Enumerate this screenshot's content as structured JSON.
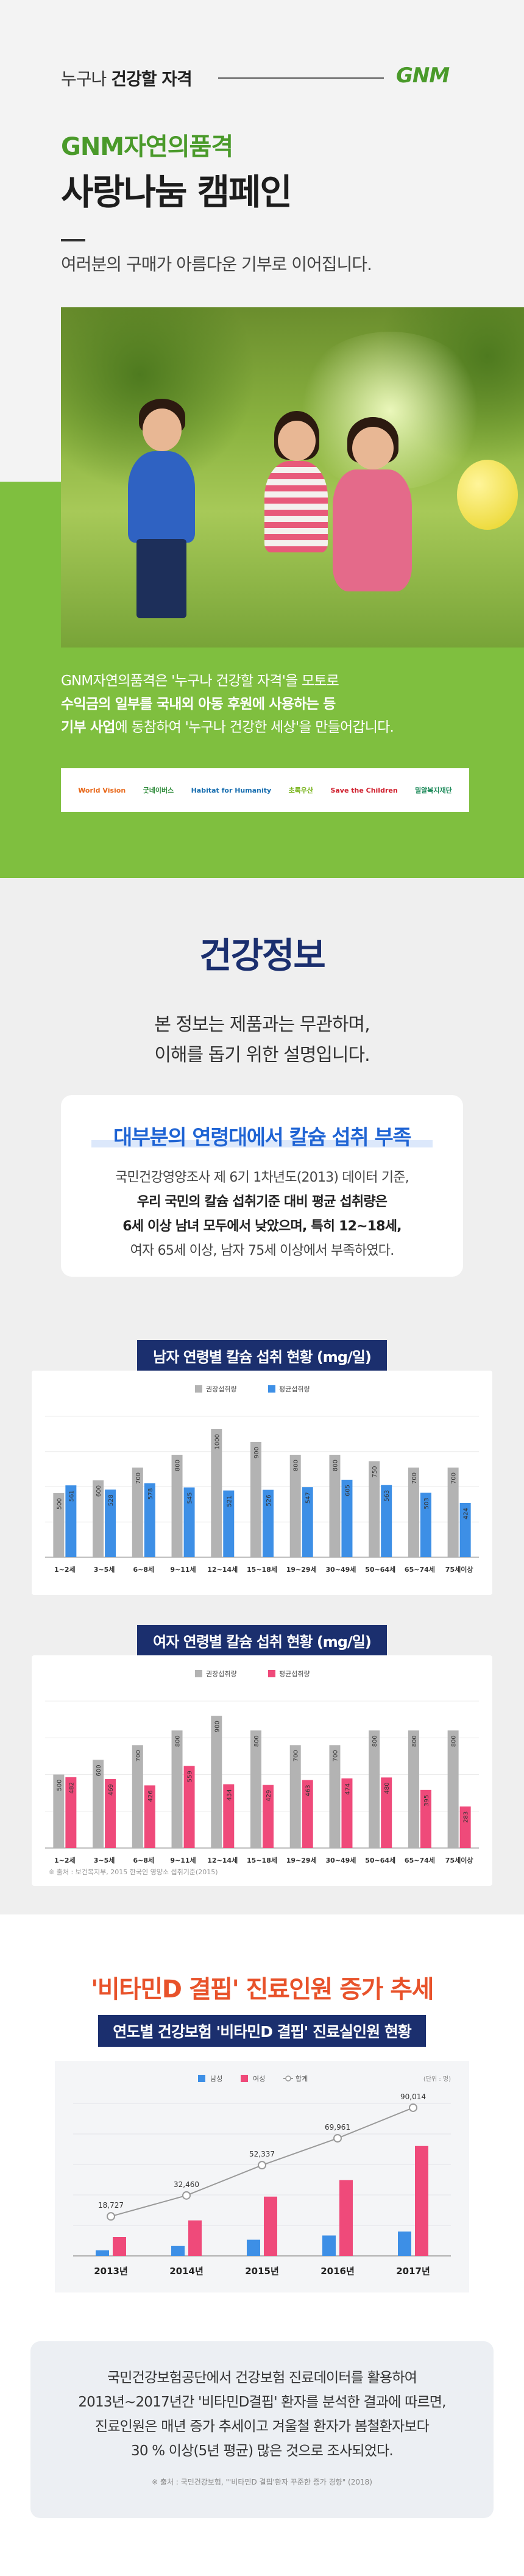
{
  "campaign": {
    "tagline_prefix": "누구나 ",
    "tagline_bold": "건강할 자격",
    "logo": "GNM",
    "brand_title": "GNM자연의품격",
    "title": "사랑나눔 캠페인",
    "subtitle": "여러분의 구매가 아름다운 기부로 이어집니다.",
    "desc_line1": "GNM자연의품격은 '누구나 건강할 자격'을 모토로",
    "desc_line2_bold": "수익금의 일부를 국내외 아동 후원에 사용하는 등",
    "desc_line3_bold": "기부 사업",
    "desc_line3_rest": "에 동참하여 '누구나 건강한 세상'을 만들어갑니다.",
    "partners": [
      {
        "label": "World Vision",
        "color": "#e8681a"
      },
      {
        "label": "굿네이버스",
        "color": "#2e8b3a"
      },
      {
        "label": "Habitat for Humanity",
        "color": "#1a6fb0"
      },
      {
        "label": "초록우산",
        "color": "#7ab41e"
      },
      {
        "label": "Save the Children",
        "color": "#d0202e"
      },
      {
        "label": "밀알복지재단",
        "color": "#1d8a5a"
      }
    ]
  },
  "health": {
    "title": "건강정보",
    "note_line1": "본 정보는 제품과는 무관하며,",
    "note_line2": "이해를 돕기 위한 설명입니다.",
    "card_title": "대부분의 연령대에서 칼슘 섭취 부족",
    "card_line1": "국민건강영양조사 제 6기 1차년도(2013) 데이터 기준,",
    "card_line2": "우리 국민의 칼슘 섭취기준 대비 평균 섭취량은",
    "card_line3": "6세 이상 남녀 모두에서 낮았으며, 특히 12~18세,",
    "card_line4": "여자 65세 이상, 남자 75세 이상에서 부족하였다.",
    "source": "※ 출처 : 보건복지부, 2015 한국인 영양소 섭취기준(2015)"
  },
  "chart_data": [
    {
      "type": "bar",
      "title": "남자 연령별 칼슘 섭취 현황 (mg/일)",
      "categories": [
        "1~2세",
        "3~5세",
        "6~8세",
        "9~11세",
        "12~14세",
        "15~18세",
        "19~29세",
        "30~49세",
        "50~64세",
        "65~74세",
        "75세이상"
      ],
      "series": [
        {
          "name": "권장섭취량",
          "color": "#b3b3b3",
          "values": [
            500,
            600,
            700,
            800,
            1000,
            900,
            800,
            800,
            750,
            700,
            700
          ]
        },
        {
          "name": "평균섭취량",
          "color": "#3d8fe6",
          "values": [
            561,
            528,
            578,
            545,
            521,
            526,
            547,
            605,
            563,
            503,
            424
          ]
        }
      ],
      "ylim": [
        0,
        1100
      ]
    },
    {
      "type": "bar",
      "title": "여자 연령별 칼슘 섭취 현황 (mg/일)",
      "categories": [
        "1~2세",
        "3~5세",
        "6~8세",
        "9~11세",
        "12~14세",
        "15~18세",
        "19~29세",
        "30~49세",
        "50~64세",
        "65~74세",
        "75세이상"
      ],
      "series": [
        {
          "name": "권장섭취량",
          "color": "#b3b3b3",
          "values": [
            500,
            600,
            700,
            800,
            900,
            800,
            700,
            700,
            800,
            800,
            800
          ]
        },
        {
          "name": "평균섭취량",
          "color": "#ef4a7a",
          "values": [
            482,
            469,
            426,
            559,
            434,
            429,
            463,
            474,
            480,
            395,
            283
          ]
        }
      ],
      "ylim": [
        0,
        1000
      ]
    },
    {
      "type": "bar",
      "title": "연도별 건강보험 '비타민D 결핍' 진료실인원 현황",
      "unit_label": "(단위 : 명)",
      "categories": [
        "2013년",
        "2014년",
        "2015년",
        "2016년",
        "2017년"
      ],
      "series": [
        {
          "name": "남성",
          "color": "#3d8fe6",
          "values": [
            3700,
            6500,
            10600,
            13400,
            16000
          ]
        },
        {
          "name": "여성",
          "color": "#ef4a7a",
          "values": [
            12400,
            23300,
            38900,
            49700,
            72100
          ]
        },
        {
          "name": "합계",
          "color": "#999999",
          "type": "line",
          "values": [
            18727,
            32460,
            52337,
            69961,
            90014
          ],
          "labels": [
            "18,727",
            "32,460",
            "52,337",
            "69,961",
            "90,014"
          ]
        }
      ],
      "ylim": [
        0,
        100000
      ]
    }
  ],
  "vitd": {
    "title": "'비타민D 결핍' 진료인원 증가 추세",
    "subtitle": "연도별 건강보험 '비타민D 결핍' 진료실인원 현황",
    "body_line1": "국민건강보험공단에서 건강보험 진료데이터를 활용하여",
    "body_line2": "2013년~2017년간 '비타민D결핍' 환자를 분석한 결과에 따르면,",
    "body_line3": "진료인원은 매년 증가 추세이고 겨울철 환자가 봄철환자보다",
    "body_line4": "30 % 이상(5년 평균) 많은 것으로 조사되었다.",
    "source": "※ 출처 : 국민건강보험, \"'비타민D 결핍'환자 꾸준한 증가 경향\" (2018)"
  }
}
